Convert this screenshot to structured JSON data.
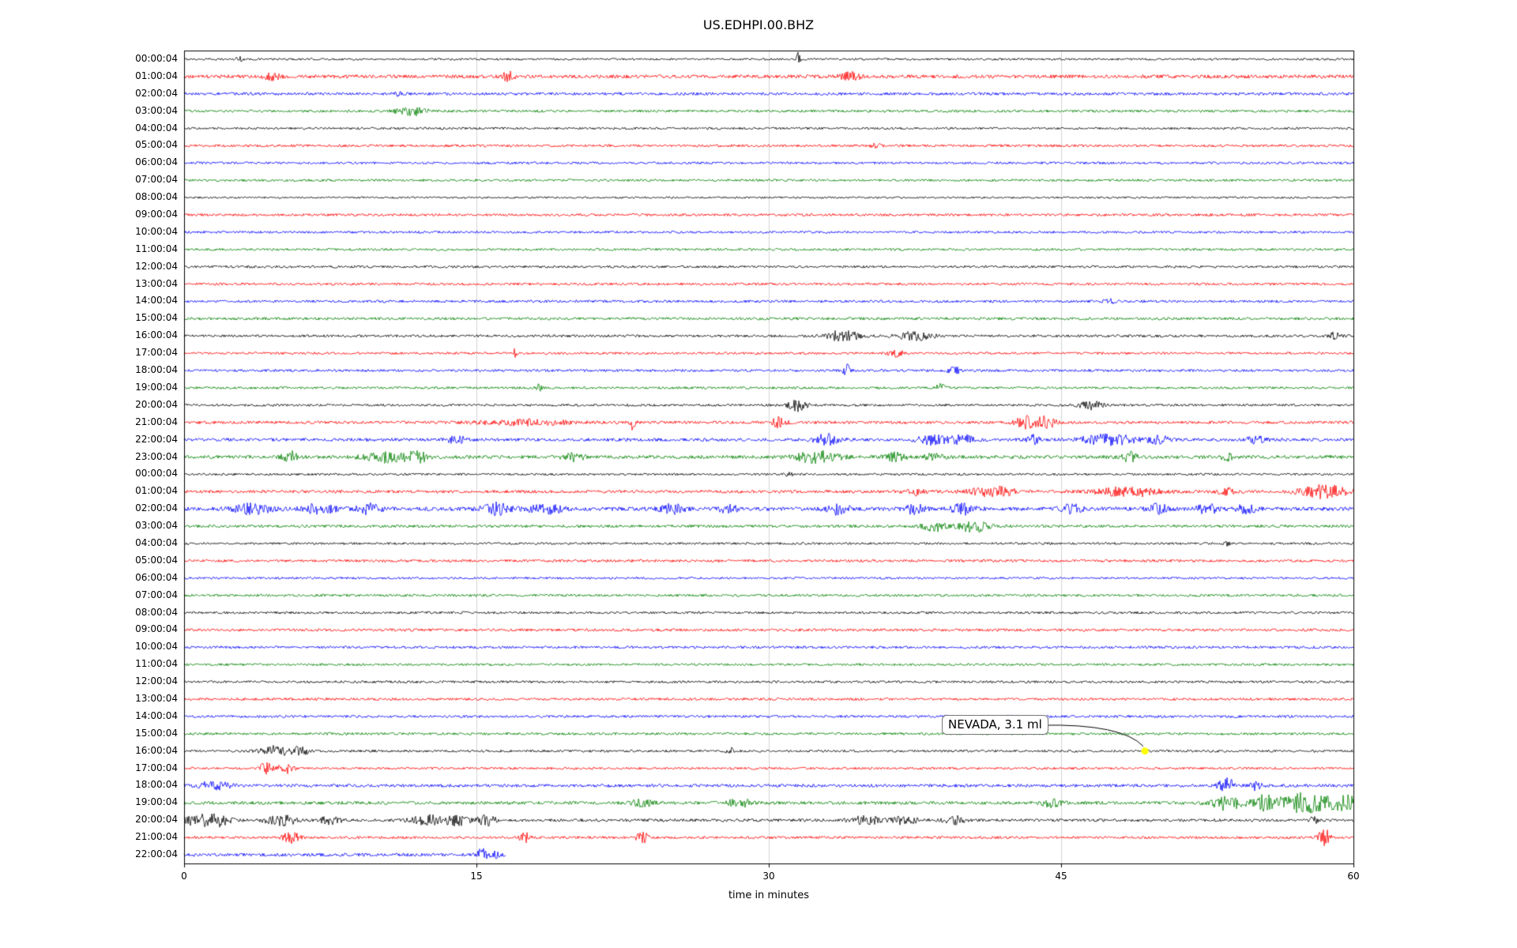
{
  "chart_data": {
    "type": "line",
    "subtype": "helicorder-dayplot",
    "title": "US.EDHPI.00.BHZ",
    "xlabel": "time in minutes",
    "x_range_minutes": [
      0,
      60
    ],
    "x_ticks": [
      0,
      15,
      30,
      45,
      60
    ],
    "grid_minutes": [
      15,
      30,
      45
    ],
    "grid_color": "#d3d3d3",
    "trace_color_cycle": [
      "#000000",
      "#ff0000",
      "#0000ff",
      "#008000"
    ],
    "annotation": {
      "text": "NEVADA, 3.1 ml",
      "row_index": 40,
      "minute": 49.3,
      "marker_color": "#ffff00"
    },
    "events_format": "[minute_position, width_minutes, amplitude_px]",
    "rows": [
      {
        "label": "00:00:04",
        "color": "#000000",
        "base": 1.3,
        "end": 60,
        "events": [
          [
            2.8,
            0.15,
            5
          ],
          [
            31.5,
            0.1,
            9
          ]
        ]
      },
      {
        "label": "01:00:04",
        "color": "#ff0000",
        "base": 2.2,
        "end": 60,
        "events": [
          [
            4.5,
            0.4,
            4
          ],
          [
            16.6,
            0.3,
            6
          ],
          [
            34.2,
            0.5,
            5
          ]
        ]
      },
      {
        "label": "02:00:04",
        "color": "#0000ff",
        "base": 1.8,
        "end": 60,
        "events": [
          [
            11,
            0.3,
            2
          ]
        ]
      },
      {
        "label": "03:00:04",
        "color": "#008000",
        "base": 1.6,
        "end": 60,
        "events": [
          [
            11.7,
            0.8,
            5
          ]
        ]
      },
      {
        "label": "04:00:04",
        "color": "#000000",
        "base": 1.4,
        "end": 60,
        "events": []
      },
      {
        "label": "05:00:04",
        "color": "#ff0000",
        "base": 1.6,
        "end": 60,
        "events": [
          [
            35.5,
            0.3,
            2
          ]
        ]
      },
      {
        "label": "06:00:04",
        "color": "#0000ff",
        "base": 1.5,
        "end": 60,
        "events": []
      },
      {
        "label": "07:00:04",
        "color": "#008000",
        "base": 1.5,
        "end": 60,
        "events": []
      },
      {
        "label": "08:00:04",
        "color": "#000000",
        "base": 1.2,
        "end": 60,
        "events": []
      },
      {
        "label": "09:00:04",
        "color": "#ff0000",
        "base": 1.6,
        "end": 60,
        "events": []
      },
      {
        "label": "10:00:04",
        "color": "#0000ff",
        "base": 1.5,
        "end": 60,
        "events": []
      },
      {
        "label": "11:00:04",
        "color": "#008000",
        "base": 1.5,
        "end": 60,
        "events": []
      },
      {
        "label": "12:00:04",
        "color": "#000000",
        "base": 1.5,
        "end": 60,
        "events": []
      },
      {
        "label": "13:00:04",
        "color": "#ff0000",
        "base": 1.6,
        "end": 60,
        "events": []
      },
      {
        "label": "14:00:04",
        "color": "#0000ff",
        "base": 1.6,
        "end": 60,
        "events": [
          [
            47.5,
            0.3,
            3
          ]
        ]
      },
      {
        "label": "15:00:04",
        "color": "#008000",
        "base": 1.7,
        "end": 60,
        "events": []
      },
      {
        "label": "16:00:04",
        "color": "#000000",
        "base": 1.6,
        "end": 60,
        "events": [
          [
            33.8,
            0.8,
            7
          ],
          [
            37.5,
            0.9,
            5
          ],
          [
            59,
            0.3,
            4
          ]
        ]
      },
      {
        "label": "17:00:04",
        "color": "#ff0000",
        "base": 1.5,
        "end": 60,
        "events": [
          [
            17,
            0.1,
            8
          ],
          [
            36.5,
            0.4,
            4
          ]
        ]
      },
      {
        "label": "18:00:04",
        "color": "#0000ff",
        "base": 1.6,
        "end": 60,
        "events": [
          [
            34,
            0.2,
            7
          ],
          [
            39.5,
            0.3,
            5
          ]
        ]
      },
      {
        "label": "19:00:04",
        "color": "#008000",
        "base": 1.5,
        "end": 60,
        "events": [
          [
            18.2,
            0.15,
            5
          ],
          [
            38.8,
            0.3,
            5
          ]
        ]
      },
      {
        "label": "20:00:04",
        "color": "#000000",
        "base": 1.5,
        "end": 60,
        "events": [
          [
            31.5,
            0.5,
            7
          ],
          [
            46.5,
            0.6,
            5
          ]
        ]
      },
      {
        "label": "21:00:04",
        "color": "#ff0000",
        "base": 1.8,
        "end": 60,
        "events": [
          [
            17.5,
            2.5,
            3
          ],
          [
            23,
            0.15,
            9
          ],
          [
            30.5,
            0.4,
            6
          ],
          [
            43.3,
            0.6,
            8
          ],
          [
            44.3,
            0.4,
            7
          ]
        ]
      },
      {
        "label": "22:00:04",
        "color": "#0000ff",
        "base": 2.0,
        "end": 60,
        "events": [
          [
            14,
            0.5,
            4
          ],
          [
            33,
            0.6,
            7
          ],
          [
            38.5,
            0.8,
            6
          ],
          [
            40,
            0.5,
            6
          ],
          [
            43.5,
            0.4,
            6
          ],
          [
            47.5,
            1.5,
            6
          ],
          [
            50,
            0.5,
            5
          ],
          [
            55,
            0.5,
            4
          ]
        ]
      },
      {
        "label": "23:00:04",
        "color": "#008000",
        "base": 2.2,
        "end": 60,
        "events": [
          [
            5.5,
            0.4,
            7
          ],
          [
            10.5,
            1.2,
            6
          ],
          [
            12,
            0.5,
            6
          ],
          [
            20,
            0.5,
            5
          ],
          [
            32.5,
            1.0,
            8
          ],
          [
            36.5,
            0.5,
            5
          ],
          [
            38.5,
            0.5,
            5
          ],
          [
            48.5,
            0.4,
            6
          ],
          [
            53.5,
            0.3,
            4
          ]
        ]
      },
      {
        "label": "00:00:04",
        "color": "#000000",
        "base": 1.4,
        "end": 60,
        "events": [
          [
            31,
            0.2,
            3
          ]
        ]
      },
      {
        "label": "01:00:04",
        "color": "#ff0000",
        "base": 1.9,
        "end": 60,
        "events": [
          [
            37.5,
            0.5,
            4
          ],
          [
            41.5,
            1.2,
            6
          ],
          [
            48.5,
            1.5,
            6
          ],
          [
            53.5,
            0.5,
            4
          ],
          [
            58.5,
            1.2,
            8
          ]
        ]
      },
      {
        "label": "02:00:04",
        "color": "#0000ff",
        "base": 2.4,
        "end": 60,
        "events": [
          [
            3.5,
            1.0,
            6
          ],
          [
            7,
            0.8,
            6
          ],
          [
            9.5,
            0.6,
            6
          ],
          [
            16,
            0.7,
            7
          ],
          [
            18.5,
            0.8,
            7
          ],
          [
            25,
            0.6,
            6
          ],
          [
            28,
            0.5,
            5
          ],
          [
            33.5,
            0.6,
            6
          ],
          [
            37.5,
            0.5,
            6
          ],
          [
            40,
            0.6,
            6
          ],
          [
            45.5,
            0.6,
            5
          ],
          [
            50,
            0.5,
            6
          ],
          [
            52.5,
            0.5,
            6
          ],
          [
            54.5,
            0.5,
            5
          ]
        ]
      },
      {
        "label": "03:00:04",
        "color": "#008000",
        "base": 1.8,
        "end": 60,
        "events": [
          [
            38.5,
            0.6,
            6
          ],
          [
            40.5,
            0.8,
            7
          ]
        ]
      },
      {
        "label": "04:00:04",
        "color": "#000000",
        "base": 1.4,
        "end": 60,
        "events": [
          [
            53.5,
            0.15,
            3
          ]
        ]
      },
      {
        "label": "05:00:04",
        "color": "#ff0000",
        "base": 1.7,
        "end": 60,
        "events": []
      },
      {
        "label": "06:00:04",
        "color": "#0000ff",
        "base": 1.4,
        "end": 60,
        "events": []
      },
      {
        "label": "07:00:04",
        "color": "#008000",
        "base": 1.6,
        "end": 60,
        "events": []
      },
      {
        "label": "08:00:04",
        "color": "#000000",
        "base": 1.5,
        "end": 60,
        "events": []
      },
      {
        "label": "09:00:04",
        "color": "#ff0000",
        "base": 1.7,
        "end": 60,
        "events": []
      },
      {
        "label": "10:00:04",
        "color": "#0000ff",
        "base": 1.6,
        "end": 60,
        "events": []
      },
      {
        "label": "11:00:04",
        "color": "#008000",
        "base": 1.5,
        "end": 60,
        "events": []
      },
      {
        "label": "12:00:04",
        "color": "#000000",
        "base": 1.5,
        "end": 60,
        "events": []
      },
      {
        "label": "13:00:04",
        "color": "#ff0000",
        "base": 1.6,
        "end": 60,
        "events": []
      },
      {
        "label": "14:00:04",
        "color": "#0000ff",
        "base": 1.6,
        "end": 60,
        "events": []
      },
      {
        "label": "15:00:04",
        "color": "#008000",
        "base": 1.6,
        "end": 60,
        "events": []
      },
      {
        "label": "16:00:04",
        "color": "#000000",
        "base": 1.5,
        "end": 60,
        "events": [
          [
            4.7,
            0.8,
            6
          ],
          [
            6,
            0.4,
            5
          ],
          [
            28,
            0.15,
            6
          ]
        ]
      },
      {
        "label": "17:00:04",
        "color": "#ff0000",
        "base": 1.5,
        "end": 60,
        "events": [
          [
            4.2,
            0.3,
            7
          ],
          [
            5.2,
            0.4,
            6
          ]
        ]
      },
      {
        "label": "18:00:04",
        "color": "#0000ff",
        "base": 1.9,
        "end": 60,
        "events": [
          [
            1.5,
            0.8,
            5
          ],
          [
            53.5,
            0.4,
            10
          ],
          [
            55,
            0.3,
            6
          ]
        ]
      },
      {
        "label": "19:00:04",
        "color": "#008000",
        "base": 2.0,
        "end": 60,
        "events": [
          [
            23.5,
            0.5,
            5
          ],
          [
            28.5,
            0.6,
            5
          ],
          [
            44.5,
            0.5,
            5
          ],
          [
            53.5,
            0.8,
            9
          ],
          [
            55.5,
            0.6,
            10
          ],
          [
            57.5,
            1.2,
            12
          ],
          [
            59.5,
            0.8,
            9
          ]
        ]
      },
      {
        "label": "20:00:04",
        "color": "#000000",
        "base": 1.8,
        "end": 60,
        "events": [
          [
            0.8,
            0.8,
            7
          ],
          [
            1.8,
            0.6,
            6
          ],
          [
            5,
            0.8,
            6
          ],
          [
            7.5,
            0.5,
            5
          ],
          [
            12.5,
            0.8,
            6
          ],
          [
            14,
            0.6,
            6
          ],
          [
            15.5,
            0.5,
            6
          ],
          [
            35,
            0.8,
            5
          ],
          [
            37,
            0.6,
            5
          ],
          [
            39.5,
            0.5,
            5
          ],
          [
            58,
            0.2,
            5
          ]
        ]
      },
      {
        "label": "21:00:04",
        "color": "#ff0000",
        "base": 1.6,
        "end": 60,
        "events": [
          [
            5.5,
            0.4,
            7
          ],
          [
            17.5,
            0.3,
            6
          ],
          [
            23.5,
            0.3,
            7
          ],
          [
            58.5,
            0.3,
            12
          ]
        ]
      },
      {
        "label": "22:00:04",
        "color": "#0000ff",
        "base": 2.0,
        "end": 16.5,
        "events": [
          [
            15.3,
            0.3,
            7
          ],
          [
            16,
            0.2,
            6
          ]
        ]
      }
    ]
  }
}
